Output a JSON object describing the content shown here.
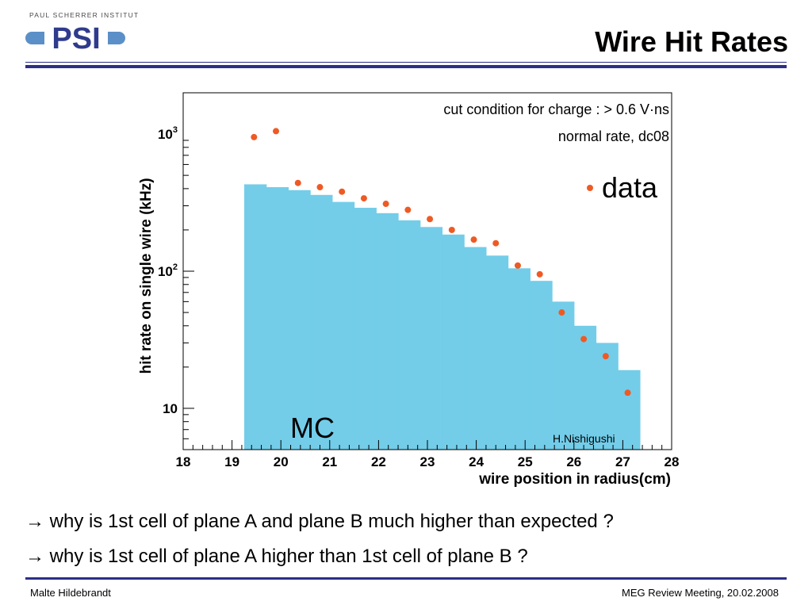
{
  "header": {
    "org_name": "PAUL SCHERRER INSTITUT",
    "logo_text": "PSI",
    "title": "Wire Hit Rates"
  },
  "chart_data": {
    "type": "bar",
    "title": "",
    "xlabel": "wire position in radius(cm)",
    "ylabel": "hit rate on single wire (kHz)",
    "xlim": [
      18,
      28
    ],
    "ylim": [
      5,
      2000
    ],
    "y_scale": "log",
    "x_ticks": [
      "18",
      "19",
      "20",
      "21",
      "22",
      "23",
      "24",
      "25",
      "26",
      "27",
      "28"
    ],
    "y_ticks": [
      {
        "value": 10,
        "label": "10"
      },
      {
        "value": 100,
        "label": "10",
        "exp": "2"
      },
      {
        "value": 1000,
        "label": "10",
        "exp": "3"
      }
    ],
    "grid": false,
    "series": [
      {
        "name": "MC",
        "kind": "histogram",
        "color": "#73cde9",
        "bin_edges": [
          19.25,
          19.7,
          20.15,
          20.6,
          21.05,
          21.5,
          21.95,
          22.4,
          22.85,
          23.3,
          23.75,
          24.2,
          24.65,
          25.1,
          25.55,
          26.0,
          26.45,
          26.9,
          27.35
        ],
        "values": [
          430,
          410,
          390,
          360,
          320,
          290,
          265,
          235,
          210,
          185,
          150,
          130,
          105,
          85,
          60,
          40,
          30,
          19
        ]
      },
      {
        "name": "data",
        "kind": "points",
        "color": "#ef5a24",
        "x": [
          19.45,
          19.9,
          20.35,
          20.8,
          21.25,
          21.7,
          22.15,
          22.6,
          23.05,
          23.5,
          23.95,
          24.4,
          24.85,
          25.3,
          25.75,
          26.2,
          26.65,
          27.1
        ],
        "y": [
          950,
          1050,
          440,
          410,
          380,
          340,
          310,
          280,
          240,
          200,
          170,
          160,
          110,
          95,
          50,
          32,
          24,
          13
        ]
      }
    ],
    "annotations": {
      "cut_condition": "cut condition for charge : > 0.6 V·ns",
      "rate_label": "normal rate, dc08",
      "legend_data": "data",
      "mc_label": "MC",
      "credit": "H.Nishigushi"
    }
  },
  "bullets": [
    "→ why is 1st cell of plane A and plane B much higher than expected ?",
    "→ why is 1st cell of plane A higher than 1st cell of plane B ?"
  ],
  "footer": {
    "author": "Malte Hildebrandt",
    "event": "MEG Review Meeting, 20.02.2008"
  }
}
